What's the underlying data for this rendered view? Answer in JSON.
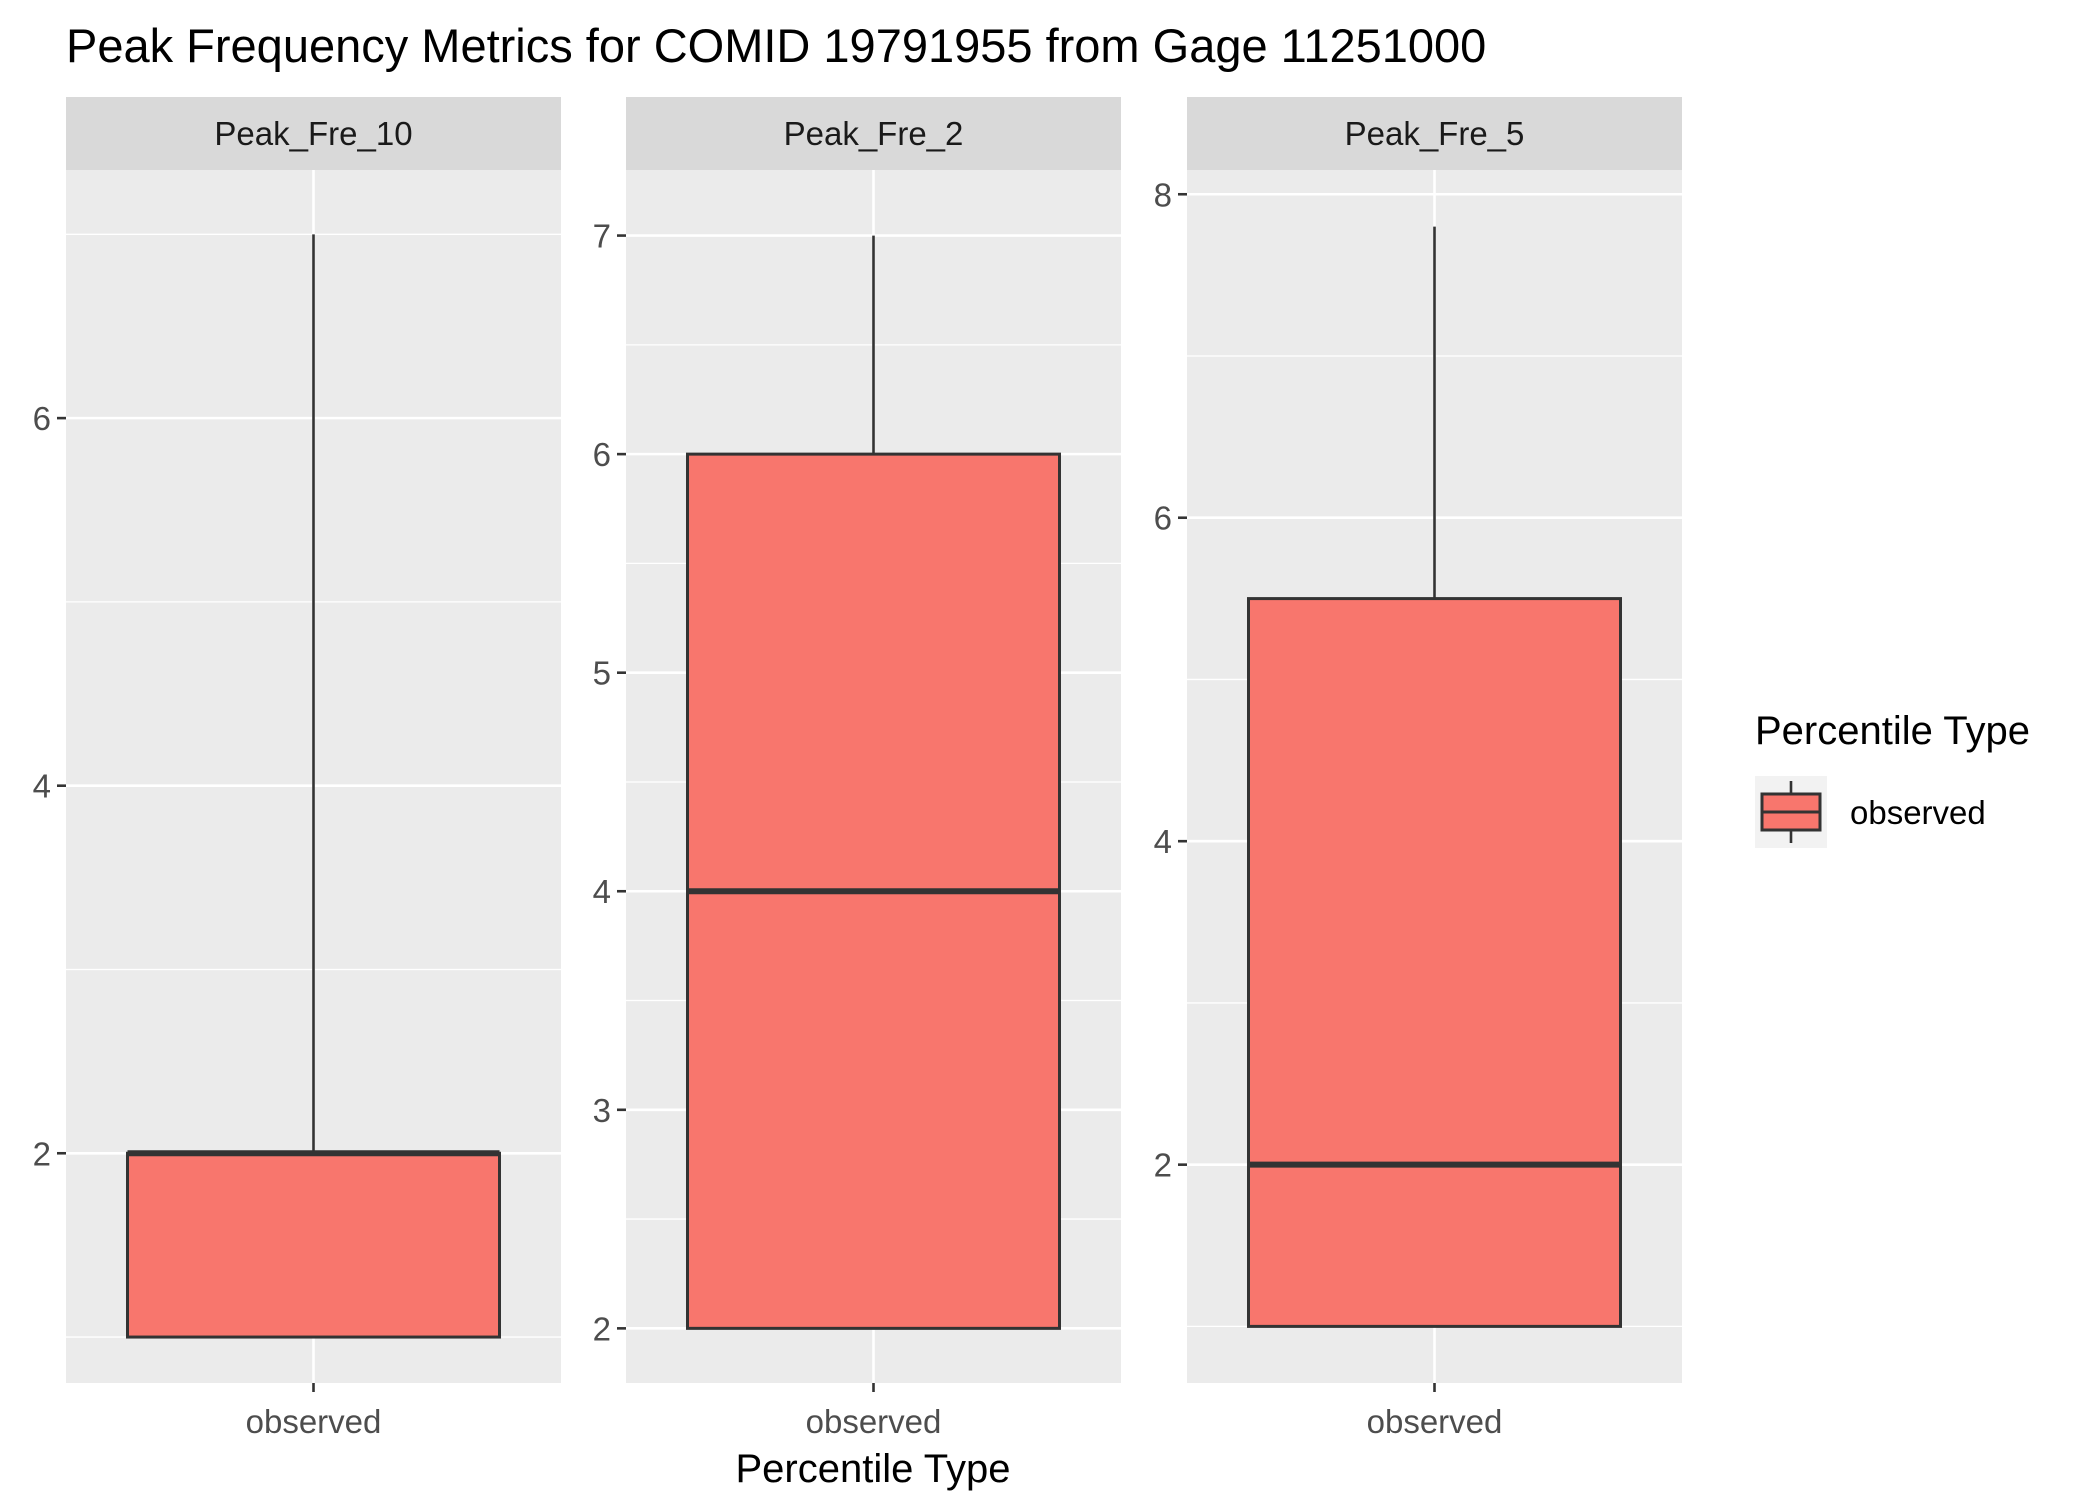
{
  "chart_data": {
    "type": "boxplot",
    "title": "Peak Frequency Metrics for COMID 19791955 from Gage 11251000",
    "xlabel": "Percentile Type",
    "ylabel": "",
    "legend": {
      "title": "Percentile Type",
      "position": "right",
      "entries": [
        {
          "label": "observed",
          "color": "#F8766D"
        }
      ]
    },
    "grid": true,
    "colors": {
      "panel_bg": "#EBEBEB",
      "strip_bg": "#D9D9D9",
      "grid": "#FFFFFF",
      "box_fill": "#F8766D",
      "box_stroke": "#333333",
      "tick_text": "#4D4D4D"
    },
    "facets": [
      {
        "label": "Peak_Fre_10",
        "ylim": [
          0.75,
          7.35
        ],
        "yticks": [
          2,
          4,
          6
        ],
        "yminor": [
          1,
          3,
          5,
          7
        ],
        "categories": [
          "observed"
        ],
        "boxes": [
          {
            "category": "observed",
            "whisker_low": 1,
            "q1": 1,
            "median": 2,
            "q3": 2,
            "whisker_high": 7
          }
        ]
      },
      {
        "label": "Peak_Fre_2",
        "ylim": [
          1.75,
          7.3
        ],
        "yticks": [
          2,
          3,
          4,
          5,
          6,
          7
        ],
        "yminor": [
          2.5,
          3.5,
          4.5,
          5.5,
          6.5
        ],
        "categories": [
          "observed"
        ],
        "boxes": [
          {
            "category": "observed",
            "whisker_low": 2,
            "q1": 2,
            "median": 4,
            "q3": 6,
            "whisker_high": 7
          }
        ]
      },
      {
        "label": "Peak_Fre_5",
        "ylim": [
          0.65,
          8.15
        ],
        "yticks": [
          2,
          4,
          6,
          8
        ],
        "yminor": [
          1,
          3,
          5,
          7
        ],
        "categories": [
          "observed"
        ],
        "boxes": [
          {
            "category": "observed",
            "whisker_low": 1,
            "q1": 1,
            "median": 2,
            "q3": 5.5,
            "whisker_high": 7.8
          }
        ]
      }
    ]
  }
}
